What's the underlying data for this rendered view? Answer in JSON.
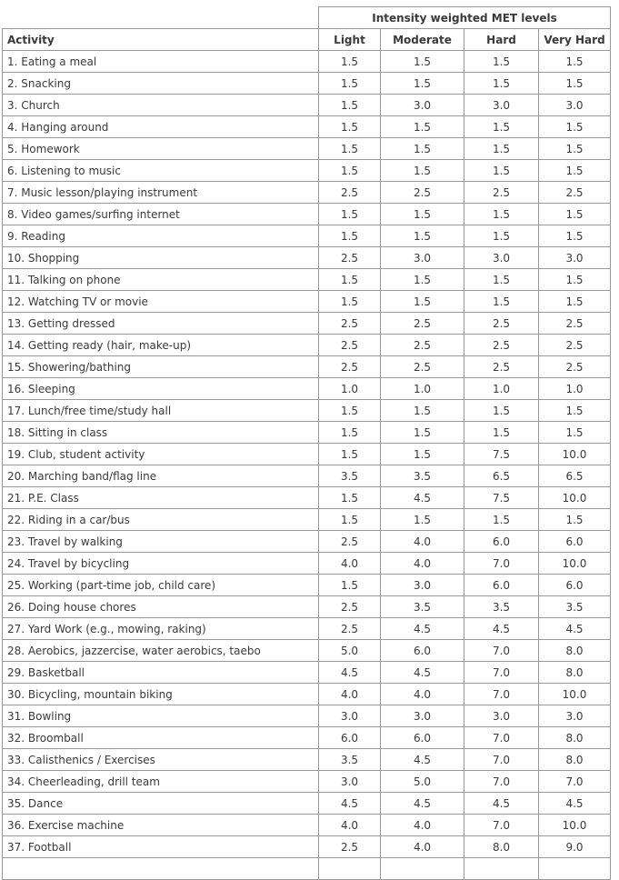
{
  "table": {
    "group_header": "Intensity weighted MET levels",
    "columns": [
      "Activity",
      "Light",
      "Moderate",
      "Hard",
      "Very Hard"
    ],
    "rows": [
      [
        "1. Eating a meal",
        "1.5",
        "1.5",
        "1.5",
        "1.5"
      ],
      [
        "2. Snacking",
        "1.5",
        "1.5",
        "1.5",
        "1.5"
      ],
      [
        "3. Church",
        "1.5",
        "3.0",
        "3.0",
        "3.0"
      ],
      [
        "4. Hanging around",
        "1.5",
        "1.5",
        "1.5",
        "1.5"
      ],
      [
        "5. Homework",
        "1.5",
        "1.5",
        "1.5",
        "1.5"
      ],
      [
        "6. Listening to music",
        "1.5",
        "1.5",
        "1.5",
        "1.5"
      ],
      [
        "7. Music lesson/playing instrument",
        "2.5",
        "2.5",
        "2.5",
        "2.5"
      ],
      [
        "8. Video games/surfing internet",
        "1.5",
        "1.5",
        "1.5",
        "1.5"
      ],
      [
        "9. Reading",
        "1.5",
        "1.5",
        "1.5",
        "1.5"
      ],
      [
        "10. Shopping",
        "2.5",
        "3.0",
        "3.0",
        "3.0"
      ],
      [
        "11. Talking on phone",
        "1.5",
        "1.5",
        "1.5",
        "1.5"
      ],
      [
        "12. Watching TV or movie",
        "1.5",
        "1.5",
        "1.5",
        "1.5"
      ],
      [
        "13. Getting dressed",
        "2.5",
        "2.5",
        "2.5",
        "2.5"
      ],
      [
        "14. Getting ready (hair, make-up)",
        "2.5",
        "2.5",
        "2.5",
        "2.5"
      ],
      [
        "15. Showering/bathing",
        "2.5",
        "2.5",
        "2.5",
        "2.5"
      ],
      [
        "16. Sleeping",
        "1.0",
        "1.0",
        "1.0",
        "1.0"
      ],
      [
        "17. Lunch/free time/study hall",
        "1.5",
        "1.5",
        "1.5",
        "1.5"
      ],
      [
        "18. Sitting in class",
        "1.5",
        "1.5",
        "1.5",
        "1.5"
      ],
      [
        "19. Club, student activity",
        "1.5",
        "1.5",
        "7.5",
        "10.0"
      ],
      [
        "20. Marching band/flag line",
        "3.5",
        "3.5",
        "6.5",
        "6.5"
      ],
      [
        "21. P.E. Class",
        "1.5",
        "4.5",
        "7.5",
        "10.0"
      ],
      [
        "22. Riding in a car/bus",
        "1.5",
        "1.5",
        "1.5",
        "1.5"
      ],
      [
        "23. Travel by walking",
        "2.5",
        "4.0",
        "6.0",
        "6.0"
      ],
      [
        "24. Travel by bicycling",
        "4.0",
        "4.0",
        "7.0",
        "10.0"
      ],
      [
        "25. Working (part-time job, child care)",
        "1.5",
        "3.0",
        "6.0",
        "6.0"
      ],
      [
        "26. Doing house chores",
        "2.5",
        "3.5",
        "3.5",
        "3.5"
      ],
      [
        "27. Yard Work (e.g., mowing, raking)",
        "2.5",
        "4.5",
        "4.5",
        "4.5"
      ],
      [
        "28. Aerobics, jazzercise, water aerobics, taebo",
        "5.0",
        "6.0",
        "7.0",
        "8.0"
      ],
      [
        "29. Basketball",
        "4.5",
        "4.5",
        "7.0",
        "8.0"
      ],
      [
        "30. Bicycling, mountain biking",
        "4.0",
        "4.0",
        "7.0",
        "10.0"
      ],
      [
        "31. Bowling",
        "3.0",
        "3.0",
        "3.0",
        "3.0"
      ],
      [
        "32. Broomball",
        "6.0",
        "6.0",
        "7.0",
        "8.0"
      ],
      [
        "33. Calisthenics / Exercises",
        "3.5",
        "4.5",
        "7.0",
        "8.0"
      ],
      [
        "34. Cheerleading, drill team",
        "3.0",
        "5.0",
        "7.0",
        "7.0"
      ],
      [
        "35. Dance",
        "4.5",
        "4.5",
        "4.5",
        "4.5"
      ],
      [
        "36. Exercise machine",
        "4.0",
        "4.0",
        "7.0",
        "10.0"
      ],
      [
        "37. Football",
        "2.5",
        "4.0",
        "8.0",
        "9.0"
      ]
    ]
  }
}
